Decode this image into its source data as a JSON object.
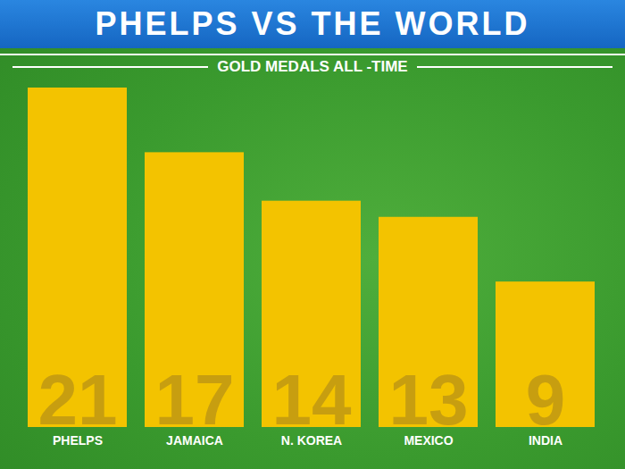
{
  "chart_data": {
    "type": "bar",
    "title": "PHELPS VS THE WORLD",
    "subtitle": "GOLD MEDALS ALL -TIME",
    "categories": [
      "PHELPS",
      "JAMAICA",
      "N. KOREA",
      "MEXICO",
      "INDIA"
    ],
    "values": [
      21,
      17,
      14,
      13,
      9
    ],
    "color": "#f3c300",
    "ylim": [
      0,
      21
    ],
    "data_labels": true,
    "tick_labels": "x",
    "grid": false
  }
}
